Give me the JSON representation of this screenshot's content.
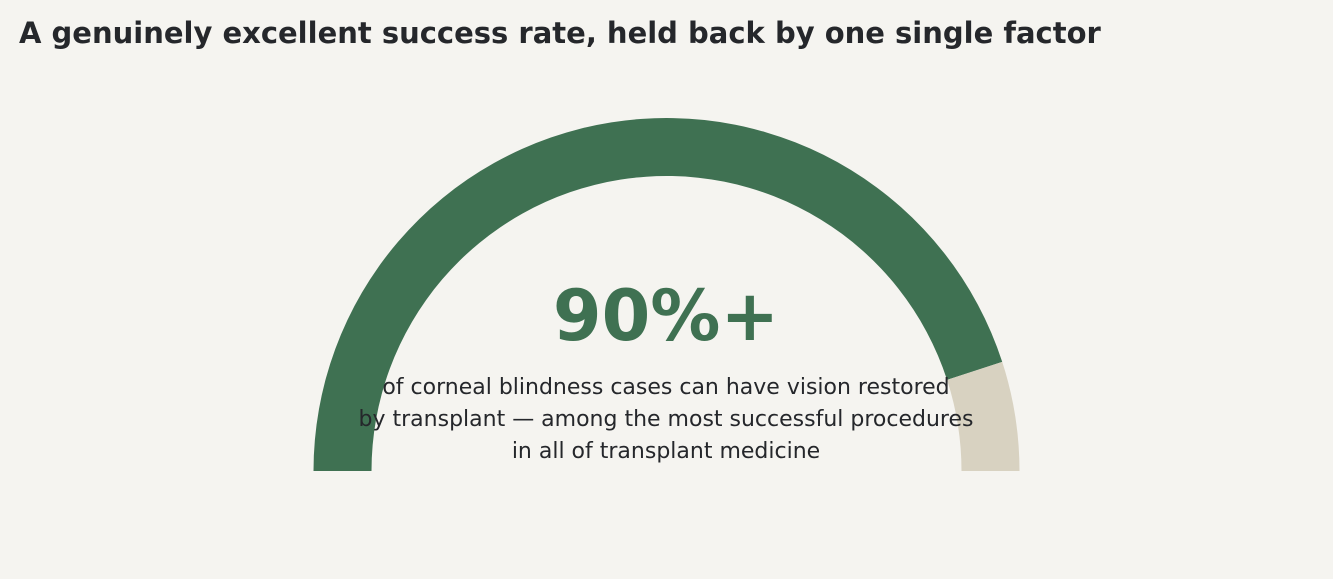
{
  "title": "A genuinely excellent success rate, held back by one single factor",
  "chart_data": {
    "type": "gauge",
    "value": 90,
    "max": 100,
    "value_label": "90%+",
    "caption_lines": [
      "of corneal blindness cases can have vision restored",
      "by transplant — among the most successful procedures",
      "in all of transplant medicine"
    ],
    "colors": {
      "filled": "#3f7152",
      "remaining": "#d8d2c1",
      "value_text": "#3f7152",
      "caption_text": "#25272b"
    }
  }
}
